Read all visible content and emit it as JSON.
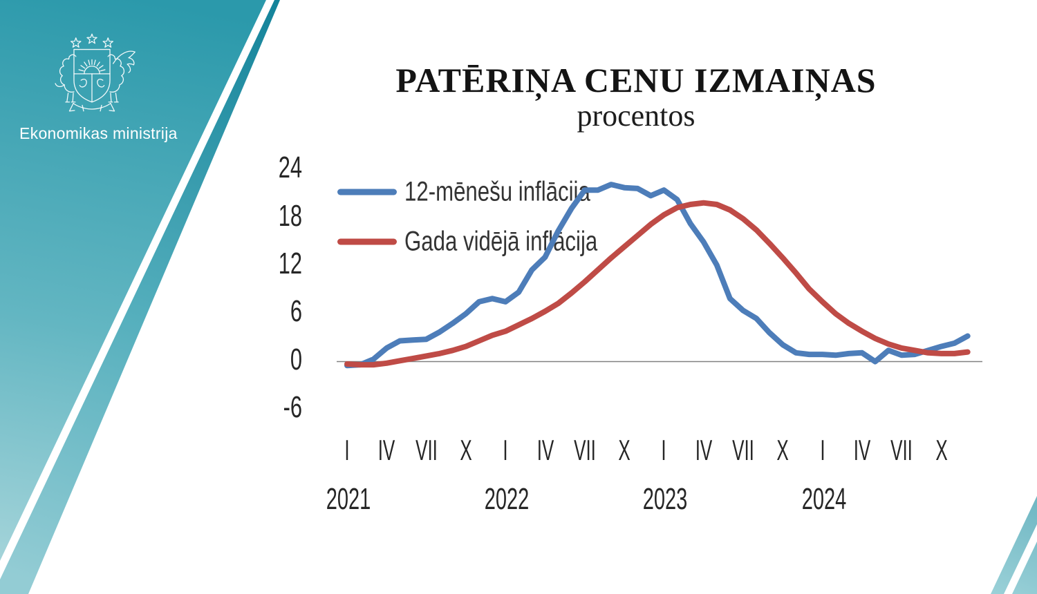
{
  "slide": {
    "title": "PATĒRIŅA CENU IZMAIŅAS",
    "subtitle": "procentos"
  },
  "logo": {
    "ministry": "Ekonomikas ministrija",
    "emblem": "latvia-coat-of-arms"
  },
  "chart_data": {
    "type": "line",
    "title": "PATĒRIŅA CENU IZMAIŅAS",
    "subtitle": "procentos",
    "unit": "percent",
    "x_range": {
      "start": "2021-01",
      "end": "2024-12",
      "points": 48
    },
    "ylim": [
      -6,
      24
    ],
    "y_ticks": [
      24,
      18,
      12,
      6,
      0,
      -6
    ],
    "grid": false,
    "x_tick_labels": [
      "I",
      "IV",
      "VII",
      "X",
      "I",
      "IV",
      "VII",
      "X",
      "I",
      "IV",
      "VII",
      "X",
      "I",
      "IV",
      "VII",
      "X"
    ],
    "year_labels": [
      "2021",
      "2022",
      "2023",
      "2024"
    ],
    "legend_position": "inside-top-left",
    "axis_color": "#808080",
    "series": [
      {
        "name": "12-mēnešu inflācija",
        "color": "#4d7db9",
        "values": [
          -0.5,
          -0.4,
          0.3,
          1.7,
          2.6,
          2.7,
          2.8,
          3.7,
          4.8,
          6.0,
          7.5,
          7.9,
          7.5,
          8.7,
          11.5,
          13.1,
          16.4,
          19.2,
          21.5,
          21.5,
          22.2,
          21.8,
          21.7,
          20.8,
          21.5,
          20.3,
          17.3,
          15.0,
          12.1,
          7.9,
          6.4,
          5.4,
          3.6,
          2.1,
          1.1,
          0.9,
          0.9,
          0.8,
          1.0,
          1.1,
          0.0,
          1.4,
          0.8,
          0.9,
          1.4,
          1.9,
          2.3,
          3.2
        ]
      },
      {
        "name": "Gada vidējā inflācija",
        "color": "#bf4b46",
        "values": [
          -0.3,
          -0.4,
          -0.4,
          -0.2,
          0.1,
          0.4,
          0.7,
          1.0,
          1.4,
          1.9,
          2.6,
          3.3,
          3.8,
          4.6,
          5.4,
          6.3,
          7.3,
          8.6,
          10.0,
          11.5,
          13.0,
          14.4,
          15.8,
          17.2,
          18.4,
          19.3,
          19.7,
          19.9,
          19.7,
          19.0,
          17.9,
          16.5,
          14.8,
          13.0,
          11.1,
          9.1,
          7.5,
          6.0,
          4.8,
          3.8,
          2.9,
          2.2,
          1.7,
          1.4,
          1.1,
          1.0,
          1.0,
          1.2
        ]
      }
    ]
  },
  "background": {
    "accent_teal_dark": "#1d8ea3",
    "accent_teal_light": "#a9d6dc"
  }
}
